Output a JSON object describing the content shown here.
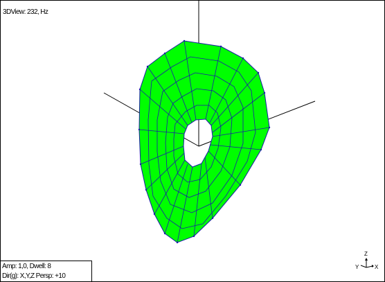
{
  "view": {
    "title": "3DView: 232, Hz",
    "info_line1": "Amp: 1,0,  Dwell: 8",
    "info_line2": "Dir(g): X,Y,Z Persp: +10"
  },
  "triad": {
    "z_label": "Z",
    "y_label": "Y",
    "x_label": "X"
  },
  "colors": {
    "background": "#ffffff",
    "surface_fill": "#00ff00",
    "mesh_lines": "#1a1aa8",
    "axes": "#000000"
  }
}
